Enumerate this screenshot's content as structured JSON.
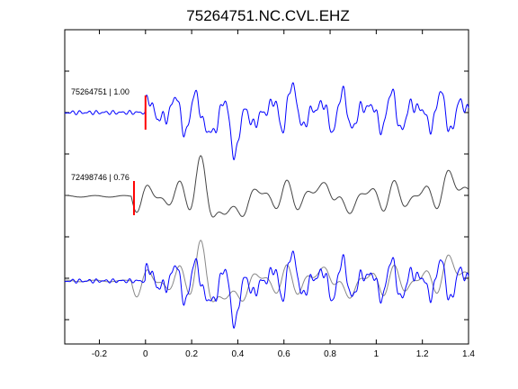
{
  "chart_data": {
    "type": "line",
    "title": "75264751.NC.CVL.EHZ",
    "xlabel": "",
    "ylabel": "",
    "xlim": [
      -0.35,
      1.4
    ],
    "xticks": [
      -0.2,
      0,
      0.2,
      0.4,
      0.6,
      0.8,
      1,
      1.2,
      1.4
    ],
    "xtick_labels": [
      "-0.2",
      "0",
      "0.2",
      "0.4",
      "0.6",
      "0.8",
      "1",
      "1.2",
      "1.4"
    ],
    "grid": false,
    "traces": [
      {
        "label": "75264751 | 1.00",
        "color": "#0000ff",
        "pick_time": 0.0,
        "pick_color": "#ff0000"
      },
      {
        "label": "72498746 | 0.76",
        "color": "#444444",
        "pick_time": -0.05,
        "pick_color": "#ff0000"
      },
      {
        "label": "",
        "overlay": true,
        "colors": [
          "#888888",
          "#0000ff"
        ]
      }
    ],
    "colors": {
      "trace_blue": "#0000ff",
      "trace_gray": "#444444",
      "overlay_gray": "#888888",
      "pick": "#ff0000"
    }
  }
}
